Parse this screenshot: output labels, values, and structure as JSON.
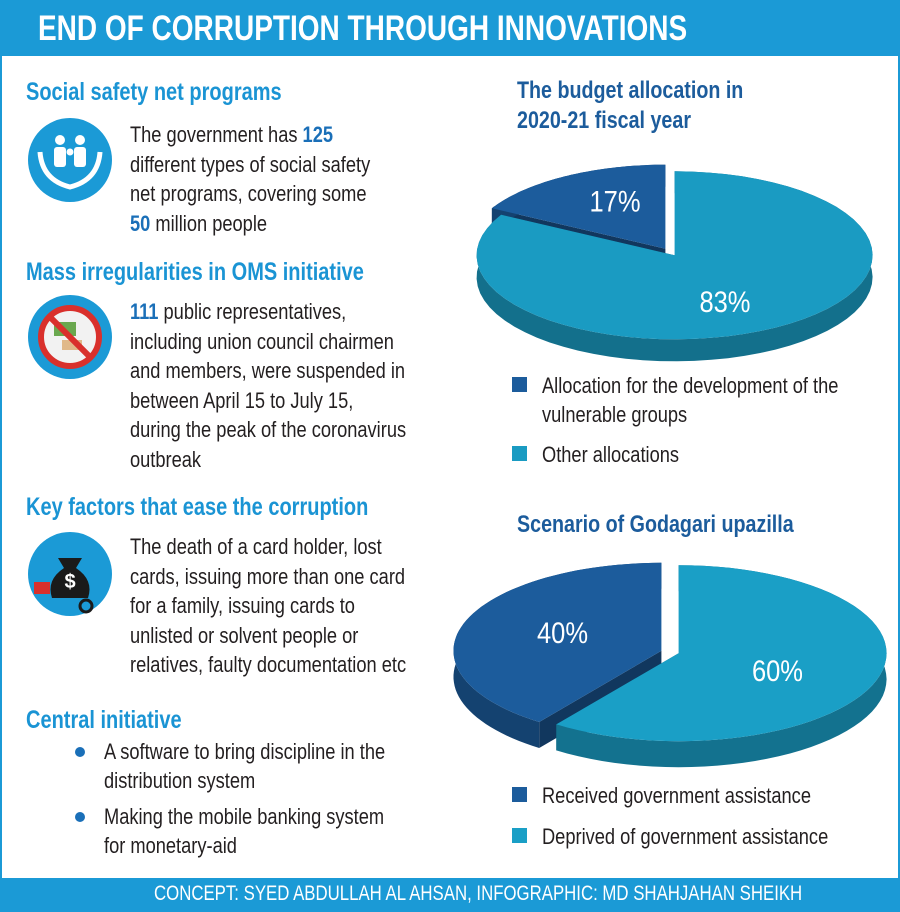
{
  "header": {
    "title": "END OF CORRUPTION THROUGH INNOVATIONS"
  },
  "sections": [
    {
      "heading": "Social safety net programs",
      "lines": [
        [
          "The government has ",
          {
            "strong": 125
          }
        ],
        "different types of social safety",
        "net programs, covering some",
        [
          {
            "strong": 50
          },
          " million people"
        ]
      ]
    },
    {
      "heading": "Mass irregularities in OMS initiative",
      "lines": [
        [
          {
            "strong": 111
          },
          " public representatives,"
        ],
        "including union council chairmen",
        "and members, were suspended in",
        "between April 15 to July 15,",
        "during the peak of the coronavirus",
        "outbreak"
      ]
    },
    {
      "heading": "Key factors that ease the corruption",
      "lines": [
        "The death of a card holder, lost",
        "cards, issuing more than one card",
        "for a family, issuing cards to",
        "unlisted or solvent people or",
        "relatives, faulty documentation etc"
      ]
    }
  ],
  "central_initiative": {
    "heading": "Central initiative",
    "items": [
      [
        "A software to bring discipline in the",
        "distribution system"
      ],
      [
        "Making the mobile banking system",
        "for monetary-aid"
      ]
    ]
  },
  "chart_data": [
    {
      "type": "pie",
      "title": "The budget allocation in 2020-21 fiscal year",
      "categories": [
        "Allocation for the development of the vulnerable groups",
        "Other allocations"
      ],
      "values": [
        17,
        83
      ],
      "value_labels": [
        "17%",
        "83%"
      ],
      "colors": [
        "#1c5c9c",
        "#1a9bc2"
      ]
    },
    {
      "type": "pie",
      "title": "Scenario of Godagari upazilla",
      "categories": [
        "Received government assistance",
        "Deprived of government assistance"
      ],
      "values": [
        40,
        60
      ],
      "value_labels": [
        "40%",
        "60%"
      ],
      "colors": [
        "#1c5c9c",
        "#1a9fc6"
      ]
    }
  ],
  "footer": {
    "credit": "CONCEPT: SYED ABDULLAH AL AHSAN, INFOGRAPHIC: MD SHAHJAHAN SHEIKH"
  }
}
